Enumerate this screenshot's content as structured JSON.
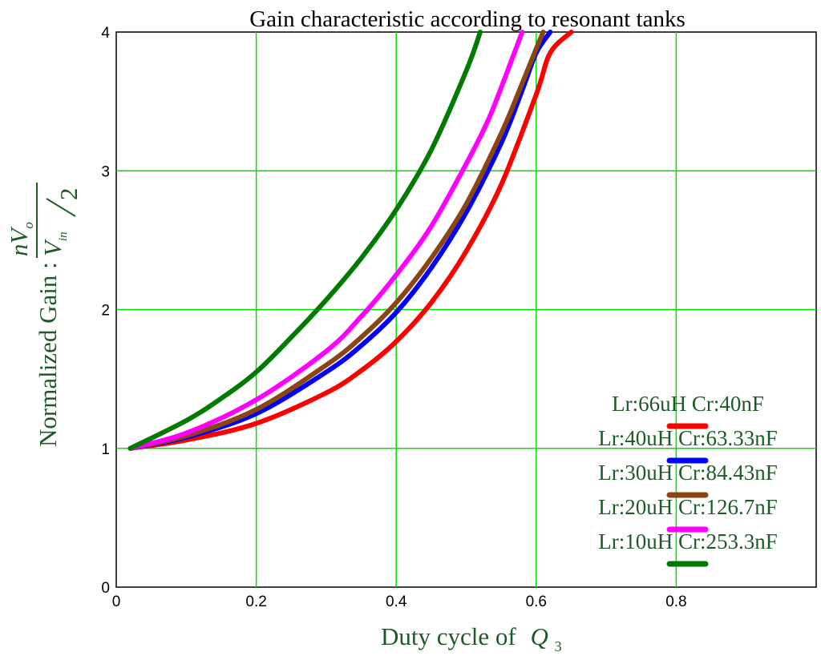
{
  "chart_data": {
    "type": "line",
    "title": "Gain characteristic according to resonant tanks",
    "xlabel": "Duty cycle of",
    "xlabel_symbol": "Q",
    "xlabel_subscript": "3",
    "ylabel": "Normalized Gain :",
    "ylabel_formula": {
      "numerator": "nV",
      "numerator_sub": "o",
      "denominator": "V",
      "denominator_sub": "in",
      "divisor": "2"
    },
    "xlim": [
      0,
      1.0
    ],
    "ylim": [
      0,
      4
    ],
    "x_ticks": [
      0,
      0.2,
      0.4,
      0.6,
      0.8
    ],
    "x_tick_labels": [
      "0",
      "0.2",
      "0.4",
      "0.6",
      "0.8"
    ],
    "y_ticks": [
      0,
      1,
      2,
      3,
      4
    ],
    "y_tick_labels": [
      "0",
      "1",
      "2",
      "3",
      "4"
    ],
    "grid": true,
    "legend_position": "bottom-right",
    "series": [
      {
        "name": "Lr:66uH  Cr:40nF",
        "color": "#ff0000",
        "x": [
          0.02,
          0.1,
          0.2,
          0.3,
          0.35,
          0.4,
          0.45,
          0.5,
          0.55,
          0.6,
          0.62,
          0.65
        ],
        "y": [
          1.0,
          1.06,
          1.18,
          1.4,
          1.56,
          1.77,
          2.05,
          2.42,
          2.9,
          3.55,
          3.85,
          4.0
        ]
      },
      {
        "name": "Lr:40uH  Cr:63.33nF",
        "color": "#0000ff",
        "x": [
          0.02,
          0.1,
          0.2,
          0.3,
          0.35,
          0.4,
          0.45,
          0.5,
          0.55,
          0.58,
          0.6,
          0.62
        ],
        "y": [
          1.0,
          1.08,
          1.25,
          1.55,
          1.74,
          1.98,
          2.3,
          2.7,
          3.2,
          3.58,
          3.85,
          4.0
        ]
      },
      {
        "name": "Lr:30uH  Cr:84.43nF",
        "color": "#8b4513",
        "x": [
          0.02,
          0.1,
          0.2,
          0.3,
          0.35,
          0.4,
          0.45,
          0.5,
          0.55,
          0.58,
          0.6,
          0.61
        ],
        "y": [
          1.0,
          1.09,
          1.28,
          1.6,
          1.8,
          2.05,
          2.37,
          2.76,
          3.27,
          3.63,
          3.88,
          4.0
        ]
      },
      {
        "name": "Lr:20uH  Cr:126.7nF",
        "color": "#ff00ff",
        "x": [
          0.02,
          0.1,
          0.2,
          0.3,
          0.35,
          0.4,
          0.45,
          0.5,
          0.53,
          0.55,
          0.58
        ],
        "y": [
          1.0,
          1.11,
          1.35,
          1.7,
          1.95,
          2.25,
          2.6,
          3.05,
          3.35,
          3.6,
          4.0
        ]
      },
      {
        "name": "Lr:10uH  Cr:253.3nF",
        "color": "#007a00",
        "x": [
          0.02,
          0.1,
          0.15,
          0.2,
          0.25,
          0.3,
          0.35,
          0.4,
          0.45,
          0.5,
          0.52
        ],
        "y": [
          1.0,
          1.2,
          1.36,
          1.55,
          1.8,
          2.07,
          2.37,
          2.72,
          3.15,
          3.72,
          4.0
        ]
      }
    ]
  }
}
